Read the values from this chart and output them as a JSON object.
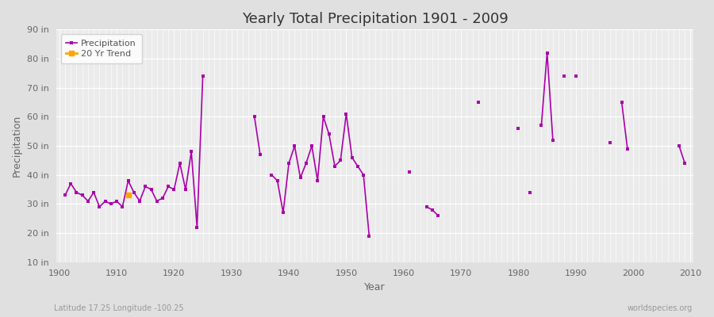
{
  "title": "Yearly Total Precipitation 1901 - 2009",
  "xlabel": "Year",
  "ylabel": "Precipitation",
  "lat_lon_label": "Latitude 17.25 Longitude -100.25",
  "watermark": "worldspecies.org",
  "line_color": "#aa00aa",
  "trend_color": "#FFA500",
  "bg_color": "#e0e0e0",
  "plot_bg_color": "#ebebeb",
  "ylim": [
    10,
    90
  ],
  "yticks": [
    10,
    20,
    30,
    40,
    50,
    60,
    70,
    80,
    90
  ],
  "ytick_labels": [
    "10 in",
    "20 in",
    "30 in",
    "40 in",
    "50 in",
    "60 in",
    "70 in",
    "80 in",
    "90 in"
  ],
  "xlim_min": 1901,
  "xlim_max": 2009,
  "years": [
    1901,
    1902,
    1903,
    1904,
    1905,
    1906,
    1907,
    1908,
    1909,
    1910,
    1911,
    1912,
    1913,
    1914,
    1915,
    1916,
    1917,
    1918,
    1919,
    1920,
    1921,
    1922,
    1923,
    1924,
    1925,
    1926,
    1927,
    1928,
    1929,
    1930,
    1931,
    1932,
    1933,
    1934,
    1935,
    1936,
    1937,
    1938,
    1939,
    1940,
    1941,
    1942,
    1943,
    1944,
    1945,
    1946,
    1947,
    1948,
    1949,
    1950,
    1951,
    1952,
    1953,
    1954,
    1955,
    1956,
    1957,
    1958,
    1959,
    1960,
    1961,
    1962,
    1963,
    1964,
    1965,
    1966,
    1967,
    1968,
    1969,
    1970,
    1971,
    1972,
    1973,
    1974,
    1975,
    1976,
    1977,
    1978,
    1979,
    1980,
    1981,
    1982,
    1983,
    1984,
    1985,
    1986,
    1987,
    1988,
    1989,
    1990,
    1991,
    1992,
    1993,
    1994,
    1995,
    1996,
    1997,
    1998,
    1999,
    2000,
    2001,
    2002,
    2003,
    2004,
    2005,
    2006,
    2007,
    2008,
    2009
  ],
  "values": [
    33,
    37,
    34,
    33,
    31,
    34,
    29,
    31,
    30,
    31,
    29,
    38,
    34,
    31,
    36,
    35,
    31,
    32,
    36,
    35,
    44,
    35,
    48,
    22,
    74,
    null,
    null,
    null,
    null,
    null,
    null,
    null,
    null,
    60,
    47,
    null,
    40,
    38,
    27,
    44,
    50,
    39,
    44,
    50,
    38,
    60,
    54,
    43,
    45,
    61,
    46,
    43,
    40,
    19,
    null,
    null,
    null,
    null,
    null,
    null,
    41,
    null,
    null,
    29,
    28,
    26,
    null,
    null,
    null,
    null,
    null,
    null,
    65,
    null,
    null,
    null,
    null,
    null,
    null,
    56,
    null,
    34,
    null,
    57,
    82,
    52,
    null,
    74,
    null,
    74,
    null,
    null,
    null,
    null,
    null,
    51,
    null,
    65,
    49,
    null,
    null,
    null,
    null,
    null,
    null,
    null,
    null,
    50,
    44
  ],
  "trend_year": 1912,
  "trend_value": 33,
  "trend_color_fill": "#FFA500"
}
